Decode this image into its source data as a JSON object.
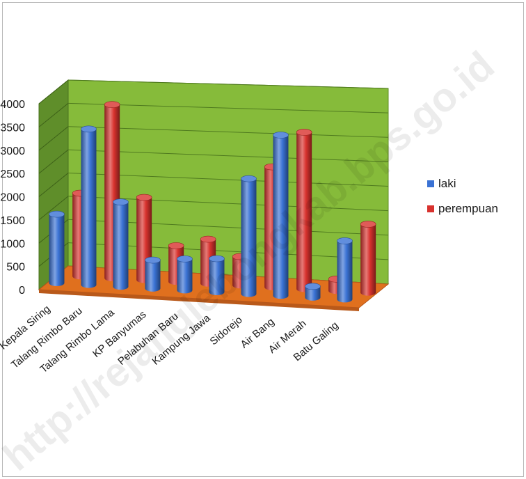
{
  "chart_data": {
    "type": "bar",
    "title": "",
    "xlabel": "",
    "ylabel": "",
    "ylim": [
      0,
      4000
    ],
    "y_ticks": [
      "4000",
      "3500",
      "3000",
      "2500",
      "2000",
      "1500",
      "1000",
      "500",
      "0"
    ],
    "categories": [
      "Kepala Siring",
      "Talang Rimbo Baru",
      "Talang Rimbo Lama",
      "KP Banyumas",
      "Pelabuhan Baru",
      "Kampung Jawa",
      "Sidorejo",
      "Air Bang",
      "Air Merah",
      "Batu Galing"
    ],
    "series": [
      {
        "name": "laki",
        "color": "#3a72d4",
        "values": [
          1480,
          3330,
          1800,
          600,
          660,
          700,
          2400,
          3330,
          230,
          1200
        ]
      },
      {
        "name": "perempuan",
        "color": "#d8322e",
        "values": [
          1780,
          3700,
          1750,
          760,
          930,
          600,
          2500,
          3240,
          240,
          1400
        ]
      }
    ],
    "grid": true,
    "legend_position": "right",
    "wall_color": "#86bb3a",
    "floor_color": "#e0701e"
  },
  "watermark": "http://rejanglebongkab.bps.go.id"
}
